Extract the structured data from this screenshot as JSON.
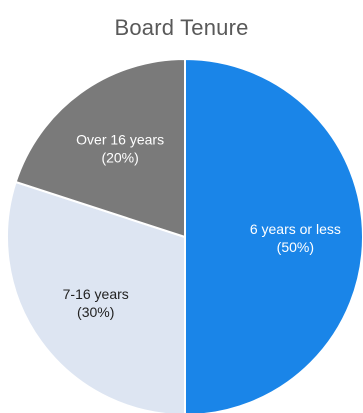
{
  "chart_data": {
    "type": "pie",
    "title": "Board Tenure",
    "slices": [
      {
        "label": "6 years or less",
        "value": 50,
        "percent_label": "(50%)",
        "color": "#1a85e8",
        "label_color": "#ffffff"
      },
      {
        "label": "7-16 years",
        "value": 30,
        "percent_label": "(30%)",
        "color": "#dde5f2",
        "label_color": "#222222"
      },
      {
        "label": "Over 16 years",
        "value": 20,
        "percent_label": "(20%)",
        "color": "#7a7a7a",
        "label_color": "#ffffff"
      }
    ],
    "start_angle": "12 o'clock",
    "direction": "clockwise",
    "legend": "none"
  }
}
